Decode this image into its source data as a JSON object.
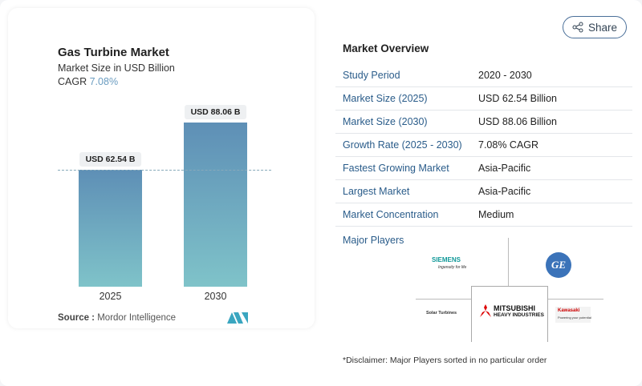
{
  "chart_data": {
    "type": "bar",
    "title": "Gas Turbine Market",
    "subtitle": "Market Size in USD Billion",
    "cagr_label": "CAGR",
    "cagr_value": "7.08%",
    "categories": [
      "2025",
      "2030"
    ],
    "values": [
      62.54,
      88.06
    ],
    "data_labels": [
      "USD 62.54 B",
      "USD 88.06 B"
    ],
    "bar_color_top": "#5e8fb6",
    "bar_color_bottom": "#7fc3c9",
    "reference_line": "dashed at 2025 value"
  },
  "source": {
    "label": "Source :",
    "value": "Mordor Intelligence"
  },
  "share_label": "Share",
  "overview": {
    "title": "Market Overview",
    "rows": [
      {
        "k": "Study Period",
        "v": "2020 - 2030"
      },
      {
        "k": "Market Size (2025)",
        "v": "USD 62.54 Billion"
      },
      {
        "k": "Market Size (2030)",
        "v": "USD 88.06 Billion"
      },
      {
        "k": "Growth Rate (2025 - 2030)",
        "v": "7.08% CAGR"
      },
      {
        "k": "Fastest Growing Market",
        "v": "Asia-Pacific"
      },
      {
        "k": "Largest Market",
        "v": "Asia-Pacific"
      },
      {
        "k": "Market Concentration",
        "v": "Medium"
      }
    ]
  },
  "players": {
    "title": "Major Players",
    "logos": [
      "SIEMENS",
      "GE",
      "Solar Turbines",
      "MITSUBISHI HEAVY INDUSTRIES",
      "Kawasaki"
    ],
    "siemens_tag": "Ingenuity for life",
    "mhi_line1": "MITSUBISHI",
    "mhi_line2": "HEAVY INDUSTRIES",
    "solar": "Solar Turbines",
    "kawasaki": "Kawasaki",
    "kawasaki_tag": "Powering your potential"
  },
  "disclaimer": "*Disclaimer: Major Players sorted in no particular order"
}
